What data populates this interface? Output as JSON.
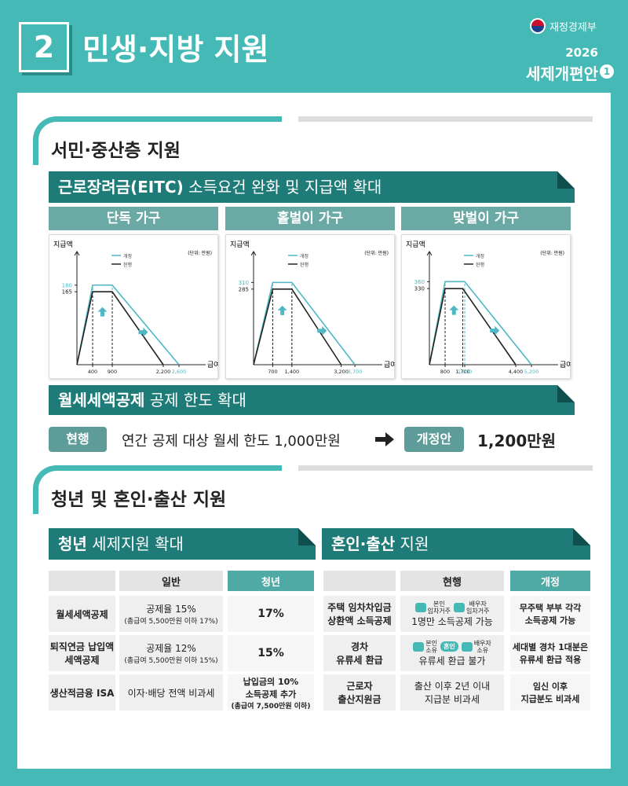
{
  "header": {
    "number": "2",
    "title": "민생·지방 지원",
    "ministry": "재정경제부",
    "year": "2026",
    "subtitle": "세제개편안",
    "badge": "1"
  },
  "section1": {
    "title": "서민·중산층 지원",
    "eitc": {
      "banner_bold": "근로장려금(EITC)",
      "banner_rest": " 소득요건 완화 및 지급액 확대",
      "charts": [
        {
          "type": "line",
          "title": "단독 가구",
          "y_label": "지급액",
          "x_label": "급여액",
          "unit": "(단위: 만원)",
          "xlim": [
            0,
            3000
          ],
          "ylim": [
            0,
            240
          ],
          "xticks": [
            400,
            900,
            {
              "value": 2200,
              "label": "2,200"
            },
            {
              "value": 2600,
              "label": "2,600"
            }
          ],
          "yticks": [
            165,
            180
          ],
          "series": [
            {
              "name": "개정",
              "color": "#4fb8c4",
              "x": [
                0,
                400,
                900,
                2600
              ],
              "values": [
                0,
                180,
                180,
                0
              ]
            },
            {
              "name": "현행",
              "color": "#222222",
              "x": [
                0,
                400,
                900,
                2200
              ],
              "values": [
                0,
                165,
                165,
                0
              ]
            }
          ]
        },
        {
          "type": "line",
          "title": "홑벌이 가구",
          "y_label": "지급액",
          "x_label": "급여액",
          "unit": "(단위: 만원)",
          "xlim": [
            0,
            4300
          ],
          "ylim": [
            0,
            400
          ],
          "xticks": [
            700,
            {
              "value": 1400,
              "label": "1,400"
            },
            {
              "value": 3200,
              "label": "3,200"
            },
            {
              "value": 3700,
              "label": "3,700"
            }
          ],
          "yticks": [
            285,
            310
          ],
          "series": [
            {
              "name": "개정",
              "color": "#4fb8c4",
              "x": [
                0,
                700,
                1400,
                3700
              ],
              "values": [
                0,
                310,
                310,
                0
              ]
            },
            {
              "name": "현행",
              "color": "#222222",
              "x": [
                0,
                700,
                1400,
                3200
              ],
              "values": [
                0,
                285,
                285,
                0
              ]
            }
          ]
        },
        {
          "type": "line",
          "title": "맞벌이 가구",
          "y_label": "지급액",
          "x_label": "급여액",
          "unit": "(단위: 만원)",
          "xlim": [
            0,
            6000
          ],
          "ylim": [
            0,
            460
          ],
          "xticks": [
            800,
            {
              "value": 1700,
              "label": "1,700"
            },
            {
              "value": 1800,
              "label": "1,800"
            },
            {
              "value": 4400,
              "label": "4,400"
            },
            {
              "value": 5200,
              "label": "5,200"
            }
          ],
          "yticks": [
            330,
            360
          ],
          "series": [
            {
              "name": "개정",
              "color": "#4fb8c4",
              "x": [
                0,
                800,
                1800,
                5200
              ],
              "values": [
                0,
                360,
                360,
                0
              ]
            },
            {
              "name": "현행",
              "color": "#222222",
              "x": [
                0,
                800,
                1700,
                4400
              ],
              "values": [
                0,
                330,
                330,
                0
              ]
            }
          ]
        }
      ]
    },
    "rent": {
      "banner_bold": "월세세액공제",
      "banner_rest": " 공제 한도 확대",
      "current_tag": "현행",
      "current": "연간 공제 대상 월세 한도 1,000만원",
      "revised_tag": "개정안",
      "revised": "1,200만원"
    }
  },
  "section2": {
    "title": "청년 및 혼인·출산 지원",
    "youth": {
      "banner_bold": "청년",
      "banner_rest": " 세제지원 확대",
      "headers": [
        "일반",
        "청년"
      ],
      "rows": [
        {
          "label": "월세세액공제",
          "general": "공제율 15%",
          "general_note": "(총급여 5,500만원 이하 17%)",
          "youth": "17%"
        },
        {
          "label": "퇴직연금 납입액\n세액공제",
          "general": "공제율 12%",
          "general_note": "(총급여 5,500만원 이하 15%)",
          "youth": "15%"
        },
        {
          "label": "생산적금융 ISA",
          "general": "이자·배당 전액 비과세",
          "youth": "납입금의 10%\n소득공제 추가",
          "youth_note": "(총급여 7,500만원 이하)"
        }
      ]
    },
    "family": {
      "banner_bold": "혼인·출산",
      "banner_rest": " 지원",
      "headers": [
        "현행",
        "개정"
      ],
      "rows": [
        {
          "label": "주택 임차차입금\n상환액 소득공제",
          "icons": [
            "본인\n임차거주",
            "배우자\n임차거주"
          ],
          "current": "1명만 소득공제 가능",
          "revised": "무주택 부부 각각\n소득공제 가능"
        },
        {
          "label": "경차\n유류세 환급",
          "icons": [
            "본인\n소유",
            "혼인",
            "배우자\n소유"
          ],
          "current": "유류세 환급 불가",
          "revised": "세대별 경차 1대분은\n유류세 환급 적용"
        },
        {
          "label": "근로자\n출산지원금",
          "current": "출산 이후 2년 이내\n지급분 비과세",
          "revised": "임신 이후\n지급분도 비과세"
        }
      ]
    }
  }
}
